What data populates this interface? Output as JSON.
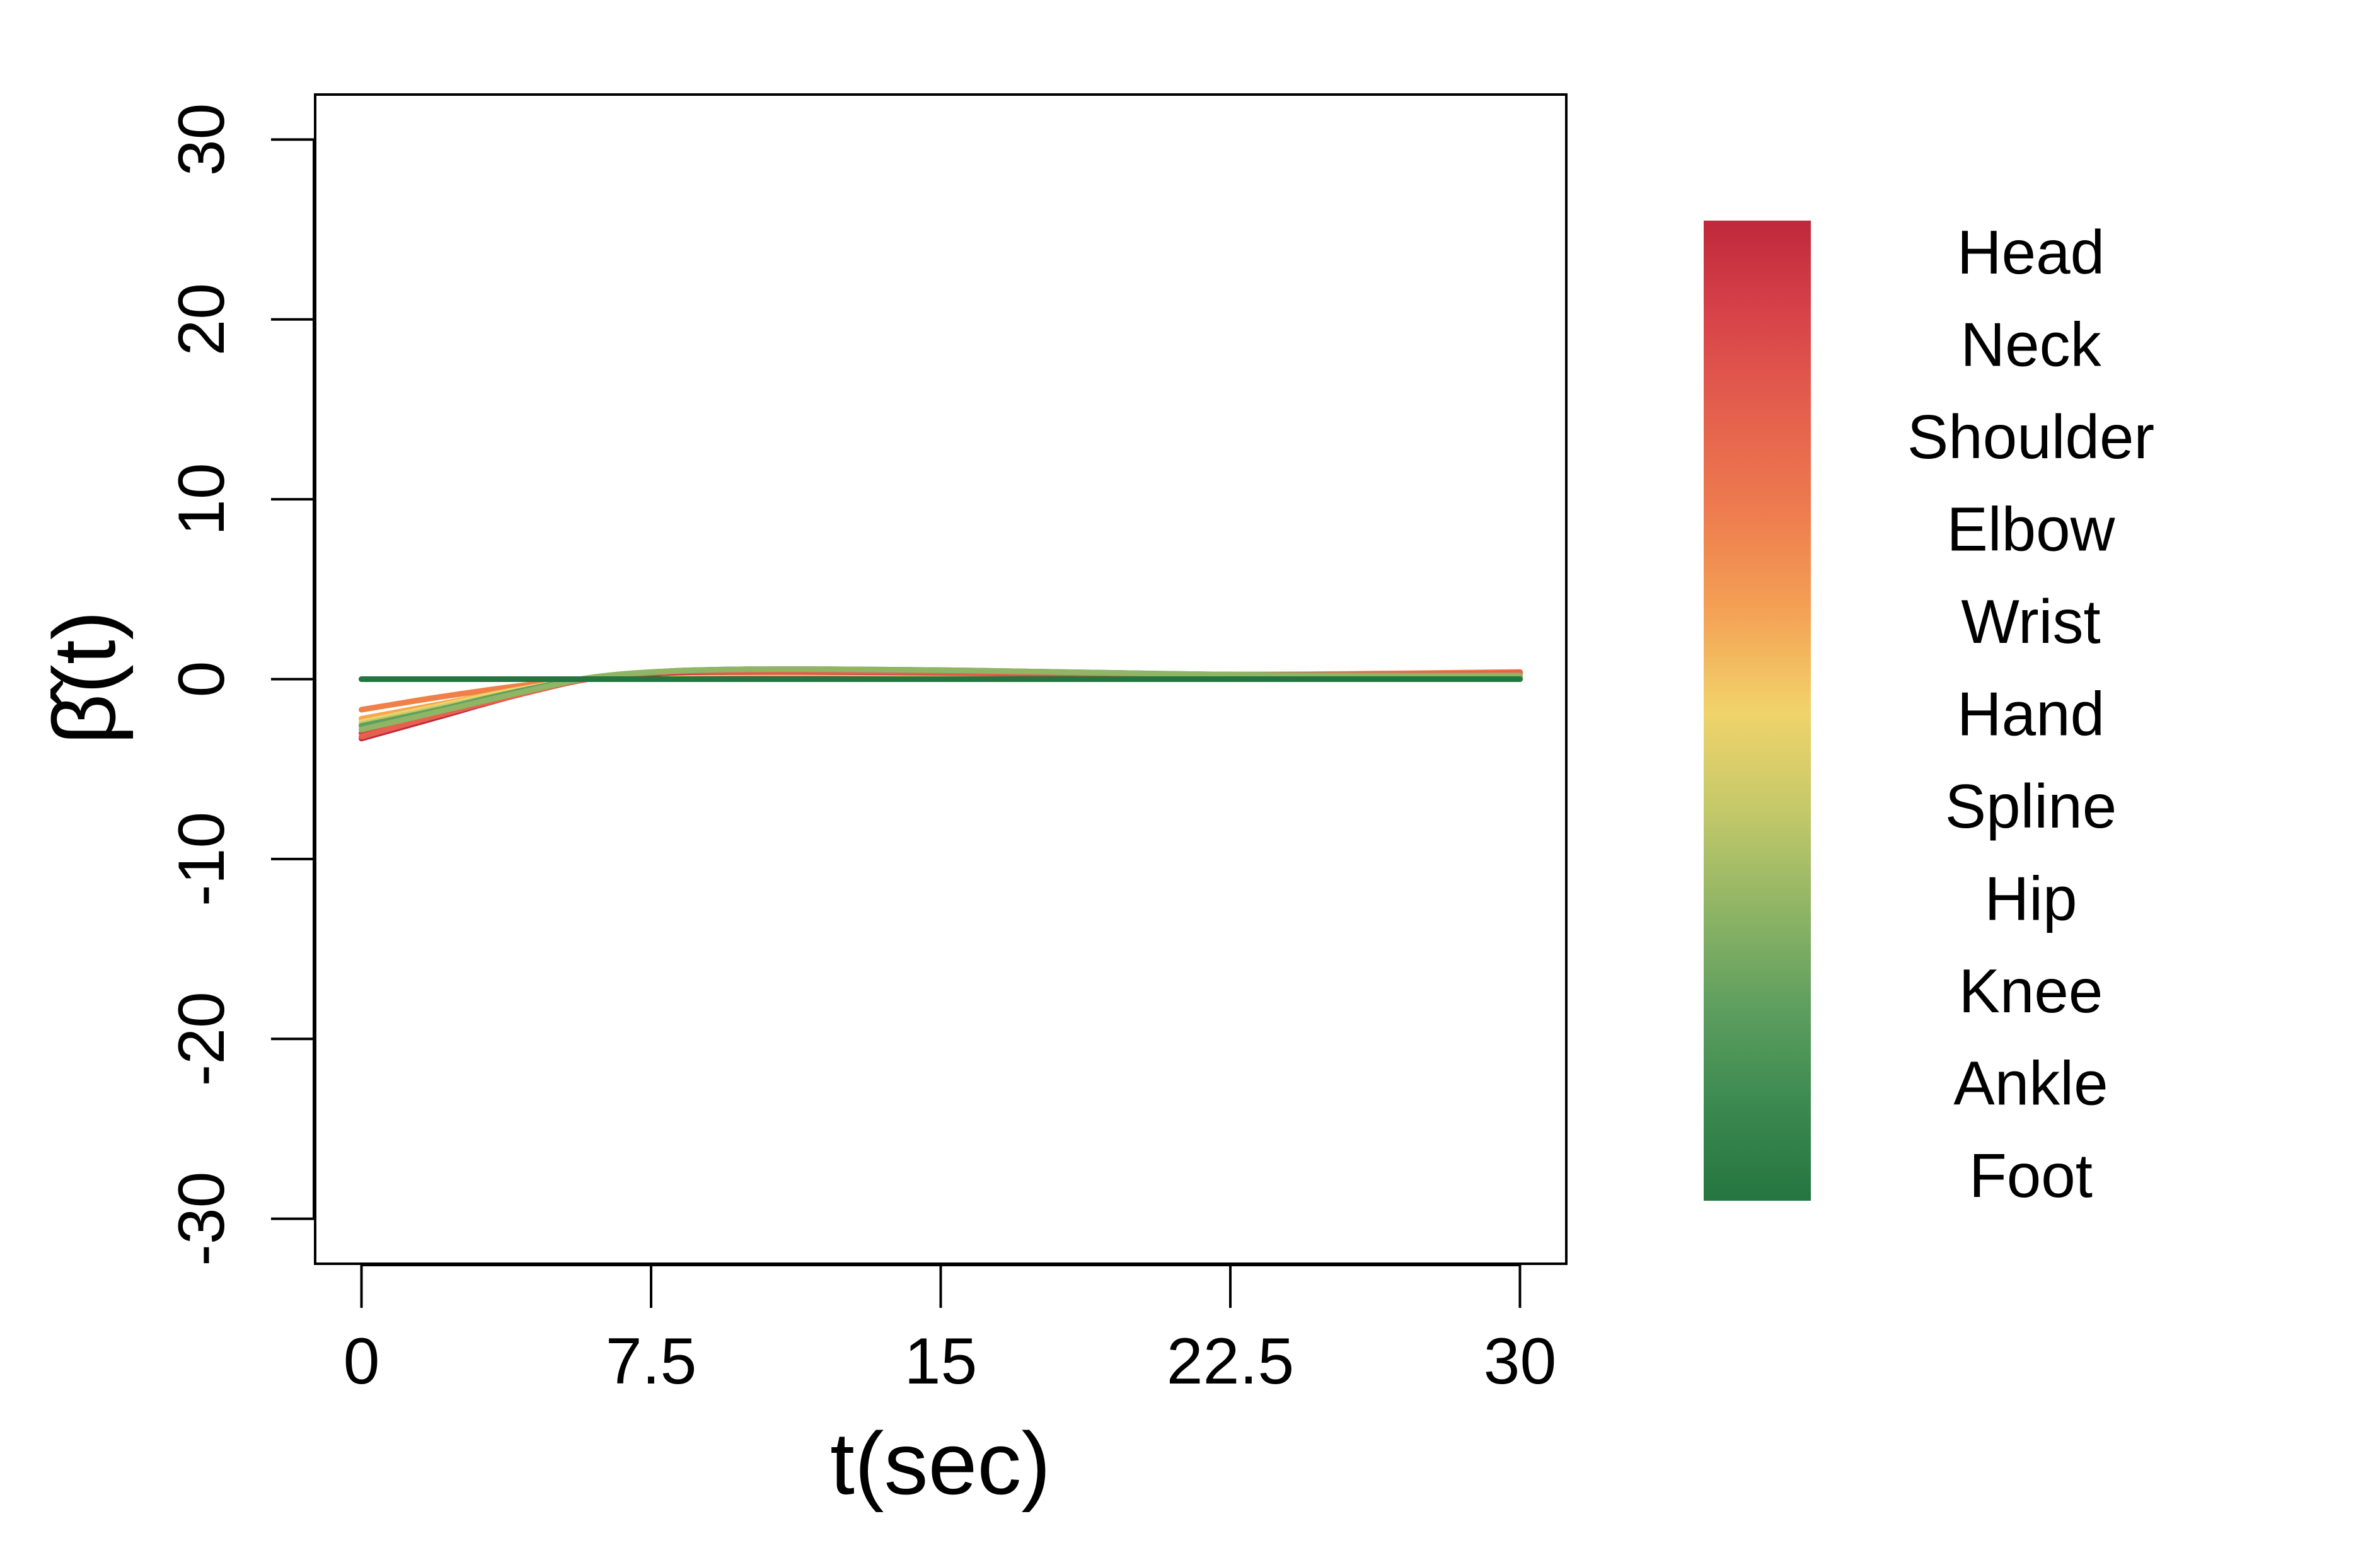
{
  "chart_data": {
    "type": "line",
    "title": "",
    "xlabel": "t(sec)",
    "ylabel": "β̂(t)",
    "xlim": [
      -1.2,
      31.2
    ],
    "ylim": [
      -32.5,
      32.5
    ],
    "xticks": [
      {
        "value": 0,
        "label": "0"
      },
      {
        "value": 7.5,
        "label": "7.5"
      },
      {
        "value": 15,
        "label": "15"
      },
      {
        "value": 22.5,
        "label": "22.5"
      },
      {
        "value": 30,
        "label": "30"
      }
    ],
    "yticks": [
      {
        "value": -30,
        "label": "-30"
      },
      {
        "value": -20,
        "label": "-20"
      },
      {
        "value": -10,
        "label": "-10"
      },
      {
        "value": 0,
        "label": "0"
      },
      {
        "value": 10,
        "label": "10"
      },
      {
        "value": 20,
        "label": "20"
      },
      {
        "value": 30,
        "label": "30"
      }
    ],
    "grid": false,
    "legend_position": "right",
    "legend_type": "color-bar",
    "x": [
      0,
      2,
      4,
      6,
      8,
      10,
      12,
      15,
      18,
      22.5,
      26,
      30
    ],
    "series": [
      {
        "name": "Head",
        "color": "#c0283b",
        "values": [
          -3.3,
          -2.1,
          -0.9,
          0.05,
          0.35,
          0.45,
          0.45,
          0.4,
          0.35,
          0.25,
          0.25,
          0.3
        ]
      },
      {
        "name": "Neck",
        "color": "#d8444a",
        "values": [
          -3.0,
          -1.9,
          -0.8,
          0.05,
          0.35,
          0.4,
          0.4,
          0.35,
          0.3,
          0.25,
          0.25,
          0.3
        ]
      },
      {
        "name": "Shoulder",
        "color": "#e85f4e",
        "values": [
          -3.2,
          -2.0,
          -0.9,
          0.05,
          0.4,
          0.45,
          0.45,
          0.4,
          0.35,
          0.25,
          0.25,
          0.35
        ]
      },
      {
        "name": "Elbow",
        "color": "#f08048",
        "values": [
          -1.7,
          -1.0,
          -0.4,
          0.05,
          0.25,
          0.3,
          0.3,
          0.3,
          0.3,
          0.25,
          0.3,
          0.4
        ]
      },
      {
        "name": "Wrist",
        "color": "#f5a84e",
        "values": [
          -2.2,
          -1.4,
          -0.6,
          0.05,
          0.3,
          0.35,
          0.35,
          0.3,
          0.3,
          0.25,
          0.25,
          0.3
        ]
      },
      {
        "name": "Hand",
        "color": "#f2d36a",
        "values": [
          -2.4,
          -1.5,
          -0.6,
          0.05,
          0.3,
          0.35,
          0.35,
          0.3,
          0.3,
          0.2,
          0.2,
          0.25
        ]
      },
      {
        "name": "Spline",
        "color": "#c4c96a",
        "values": [
          -2.5,
          -1.6,
          -0.7,
          0.05,
          0.35,
          0.4,
          0.4,
          0.35,
          0.3,
          0.2,
          0.2,
          0.2
        ]
      },
      {
        "name": "Hip",
        "color": "#8fb565",
        "values": [
          -2.8,
          -1.8,
          -0.8,
          0.1,
          0.45,
          0.55,
          0.55,
          0.5,
          0.4,
          0.25,
          0.2,
          0.2
        ]
      },
      {
        "name": "Knee",
        "color": "#5ea060",
        "values": [
          -2.6,
          -1.7,
          -0.7,
          0.1,
          0.45,
          0.55,
          0.55,
          0.5,
          0.4,
          0.25,
          0.2,
          0.15
        ]
      },
      {
        "name": "Ankle",
        "color": "#3d8a52",
        "values": [
          0,
          0,
          0,
          0,
          0,
          0,
          0,
          0,
          0,
          0,
          0,
          0
        ]
      },
      {
        "name": "Foot",
        "color": "#257540",
        "values": [
          0,
          0,
          0,
          0,
          0,
          0,
          0,
          0,
          0,
          0,
          0,
          0
        ]
      }
    ],
    "colorbar": {
      "labels": [
        "Head",
        "Neck",
        "Shoulder",
        "Elbow",
        "Wrist",
        "Hand",
        "Spline",
        "Hip",
        "Knee",
        "Ankle",
        "Foot"
      ],
      "colors": [
        "#c0283b",
        "#d8444a",
        "#e5614d",
        "#ee7d4f",
        "#f4a255",
        "#f1d36a",
        "#c5c96a",
        "#90b565",
        "#5f9f5f",
        "#3c8a51",
        "#257540"
      ]
    }
  }
}
